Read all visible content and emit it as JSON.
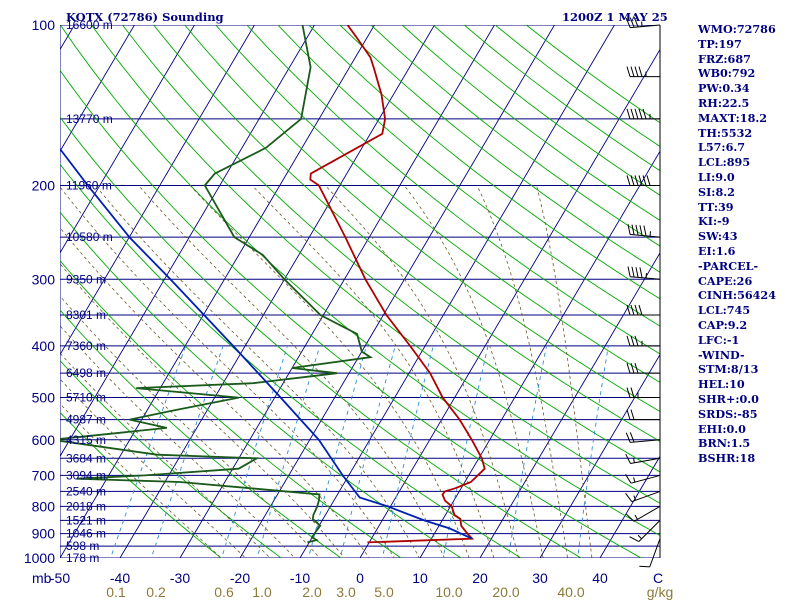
{
  "header": {
    "station": "KOTX (72786) Sounding",
    "time": "1200Z  1 MAY 25"
  },
  "indices": [
    "WMO:72786",
    "TP:197",
    "FRZ:687",
    "WB0:792",
    "PW:0.34",
    "RH:22.5",
    "MAXT:18.2",
    "TH:5532",
    "L57:6.7",
    "LCL:895",
    "LI:9.0",
    "SI:8.2",
    "TT:39",
    "KI:-9",
    "SW:43",
    "EI:1.6",
    "-PARCEL-",
    "CAPE:26",
    "CINH:56424",
    "LCL:745",
    "CAP:9.2",
    "LFC:-1",
    "-WIND-",
    "STM:8/13",
    "HEL:10",
    "SHR+:0.0",
    "SRDS:-85",
    "EHI:0.0",
    "BRN:1.5",
    "BSHR:18"
  ],
  "colors": {
    "isobar": "#000080",
    "isotherm": "#000080",
    "dry_adiabat": "#00aa00",
    "moist_adiabat": "#6a5a2a",
    "mixing_ratio": "#2f8fd0",
    "temperature": "#b00000",
    "dewpoint": "#1a5a1a",
    "parcel": "#0020b0",
    "wind": "#000000"
  },
  "chart_data": {
    "type": "line",
    "subtype": "skew-T log-P sounding",
    "pressure_ticks": [
      "100",
      "200",
      "300",
      "400",
      "500",
      "600",
      "700",
      "800",
      "900",
      "1000"
    ],
    "pressure_tick_values": [
      100,
      200,
      300,
      400,
      500,
      600,
      700,
      800,
      900,
      1000
    ],
    "temp_ticks": [
      "-50",
      "-40",
      "-30",
      "-20",
      "-10",
      "0",
      "10",
      "20",
      "30",
      "40",
      "C"
    ],
    "temp_tick_values": [
      -50,
      -40,
      -30,
      -20,
      -10,
      0,
      10,
      20,
      30,
      40
    ],
    "mixing_ratio_ticks": [
      "0.1",
      "0.2",
      "0.6",
      "1.0",
      "2.0",
      "3.0",
      "5.0",
      "10.0",
      "20.0",
      "40.0",
      "g/kg"
    ],
    "mixing_ratio_values": [
      0.1,
      0.2,
      0.6,
      1.0,
      2.0,
      3.0,
      5.0,
      10.0,
      20.0,
      40.0
    ],
    "height_labels": [
      {
        "p": 100,
        "label": "16600 m"
      },
      {
        "p": 150,
        "label": "13770 m"
      },
      {
        "p": 200,
        "label": "11960 m"
      },
      {
        "p": 250,
        "label": "10580 m"
      },
      {
        "p": 300,
        "label": "9350 m"
      },
      {
        "p": 350,
        "label": "8301 m"
      },
      {
        "p": 400,
        "label": "7360 m"
      },
      {
        "p": 450,
        "label": "6498 m"
      },
      {
        "p": 500,
        "label": "5710 m"
      },
      {
        "p": 550,
        "label": "4987 m"
      },
      {
        "p": 600,
        "label": "4315 m"
      },
      {
        "p": 650,
        "label": "3684 m"
      },
      {
        "p": 700,
        "label": "3094 m"
      },
      {
        "p": 750,
        "label": "2540 m"
      },
      {
        "p": 800,
        "label": "2018 m"
      },
      {
        "p": 850,
        "label": "1521 m"
      },
      {
        "p": 900,
        "label": "1046 m"
      },
      {
        "p": 950,
        "label": "598 m"
      },
      {
        "p": 1000,
        "label": "178 m"
      }
    ],
    "series": [
      {
        "key": "temperature",
        "points": [
          [
            935,
            -0.3
          ],
          [
            920,
            16.8
          ],
          [
            900,
            15.5
          ],
          [
            870,
            13.7
          ],
          [
            845,
            12.9
          ],
          [
            830,
            11.5
          ],
          [
            800,
            10.2
          ],
          [
            780,
            8.5
          ],
          [
            760,
            7.5
          ],
          [
            750,
            7.6
          ],
          [
            740,
            9.0
          ],
          [
            720,
            11.0
          ],
          [
            680,
            12.0
          ],
          [
            650,
            10.5
          ],
          [
            600,
            7.0
          ],
          [
            550,
            3.0
          ],
          [
            500,
            -2.0
          ],
          [
            450,
            -6.5
          ],
          [
            400,
            -12.5
          ],
          [
            350,
            -19.5
          ],
          [
            300,
            -26.5
          ],
          [
            250,
            -34.0
          ],
          [
            200,
            -43.5
          ],
          [
            195,
            -45.5
          ],
          [
            190,
            -46.0
          ],
          [
            160,
            -38.0
          ],
          [
            150,
            -39.0
          ],
          [
            135,
            -42.0
          ],
          [
            120,
            -46.0
          ],
          [
            115,
            -47.5
          ],
          [
            105,
            -52.0
          ],
          [
            100,
            -54.5
          ]
        ]
      },
      {
        "key": "dewpoint",
        "points": [
          [
            935,
            -10.3
          ],
          [
            925,
            -9.0
          ],
          [
            915,
            -10.0
          ],
          [
            900,
            -10.0
          ],
          [
            870,
            -9.8
          ],
          [
            845,
            -11.7
          ],
          [
            830,
            -12.0
          ],
          [
            800,
            -12.2
          ],
          [
            780,
            -12.5
          ],
          [
            760,
            -13.0
          ],
          [
            740,
            -25.0
          ],
          [
            720,
            -37.5
          ],
          [
            710,
            -55.0
          ],
          [
            700,
            -44.0
          ],
          [
            680,
            -29.0
          ],
          [
            650,
            -27.0
          ],
          [
            640,
            -44.0
          ],
          [
            600,
            -63.0
          ],
          [
            570,
            -45.0
          ],
          [
            550,
            -52.0
          ],
          [
            530,
            -46.0
          ],
          [
            500,
            -36.0
          ],
          [
            480,
            -54.0
          ],
          [
            470,
            -35.0
          ],
          [
            450,
            -22.0
          ],
          [
            440,
            -30.0
          ],
          [
            420,
            -18.0
          ],
          [
            410,
            -20.0
          ],
          [
            380,
            -22.5
          ],
          [
            350,
            -30.5
          ],
          [
            300,
            -40.0
          ],
          [
            270,
            -46.0
          ],
          [
            250,
            -52.5
          ],
          [
            200,
            -62.5
          ],
          [
            190,
            -62.0
          ],
          [
            170,
            -56.0
          ],
          [
            150,
            -53.0
          ],
          [
            120,
            -56.5
          ],
          [
            100,
            -62.0
          ]
        ]
      },
      {
        "key": "parcel",
        "points": [
          [
            920,
            16.8
          ],
          [
            880,
            12.0
          ],
          [
            850,
            7.0
          ],
          [
            800,
            -0.5
          ],
          [
            770,
            -6.0
          ],
          [
            700,
            -11.0
          ],
          [
            600,
            -18.5
          ],
          [
            500,
            -29.0
          ],
          [
            400,
            -42.0
          ],
          [
            300,
            -59.0
          ],
          [
            250,
            -70.0
          ],
          [
            200,
            -82.0
          ],
          [
            150,
            -97.0
          ],
          [
            100,
            -112.0
          ]
        ]
      }
    ],
    "wind_barbs": [
      {
        "p": 920,
        "dir": 200,
        "spd": 10
      },
      {
        "p": 850,
        "dir": 225,
        "spd": 15
      },
      {
        "p": 800,
        "dir": 240,
        "spd": 15
      },
      {
        "p": 750,
        "dir": 250,
        "spd": 15
      },
      {
        "p": 700,
        "dir": 255,
        "spd": 15
      },
      {
        "p": 650,
        "dir": 260,
        "spd": 15
      },
      {
        "p": 600,
        "dir": 265,
        "spd": 20
      },
      {
        "p": 550,
        "dir": 270,
        "spd": 20
      },
      {
        "p": 500,
        "dir": 270,
        "spd": 25
      },
      {
        "p": 450,
        "dir": 270,
        "spd": 30
      },
      {
        "p": 400,
        "dir": 270,
        "spd": 35
      },
      {
        "p": 350,
        "dir": 270,
        "spd": 40
      },
      {
        "p": 300,
        "dir": 275,
        "spd": 45
      },
      {
        "p": 250,
        "dir": 275,
        "spd": 55
      },
      {
        "p": 200,
        "dir": 270,
        "spd": 60
      },
      {
        "p": 150,
        "dir": 270,
        "spd": 55
      },
      {
        "p": 125,
        "dir": 270,
        "spd": 45
      },
      {
        "p": 100,
        "dir": 265,
        "spd": 35
      }
    ]
  }
}
